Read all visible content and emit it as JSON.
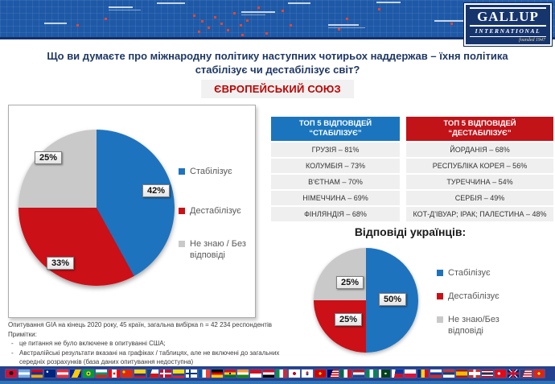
{
  "header": {
    "logo_line1": "GALLUP",
    "logo_line2": "INTERNATIONAL",
    "logo_line3": "founded 1947"
  },
  "question": {
    "line1": "Що ви думаєте про міжнародну політику наступних чотирьох наддержав – їхня політика",
    "line2": "стабілізує чи дестабілізує світ?",
    "badge": "ЄВРОПЕЙСЬКИЙ СОЮЗ"
  },
  "ukrainian_heading": "Відповіді українців:",
  "colors": {
    "stabilize_blue": "#1E73BE",
    "destabilize_red": "#CB1017",
    "no_answer_gray": "#C9C9C9",
    "accent_red": "#C00000",
    "table_header_blue": "#1B75BE",
    "table_header_red": "#C11318",
    "banner_blue": "#1E59A7",
    "flags_bar_navy": "#24408E"
  },
  "chart_data": [
    {
      "type": "pie",
      "id": "eu",
      "title": "ЄВРОПЕЙСЬКИЙ СОЮЗ",
      "labels": [
        "Стабілізує",
        "Дестабілізує",
        "Не знаю / Без відповіді"
      ],
      "values": [
        42,
        33,
        25
      ],
      "colors": [
        "#1E73BE",
        "#CB1017",
        "#C9C9C9"
      ],
      "legend_position": "right"
    },
    {
      "type": "pie",
      "id": "ukraine",
      "title": "Відповіді українців:",
      "labels": [
        "Стабілізує",
        "Дестабілізує",
        "Не знаю/Без відповіді"
      ],
      "values": [
        50,
        25,
        25
      ],
      "colors": [
        "#1E73BE",
        "#CB1017",
        "#C9C9C9"
      ],
      "legend_position": "right"
    },
    {
      "type": "table",
      "id": "top5-stabilize",
      "title_line1": "ТОП 5 ВІДПОВІДЕЙ",
      "title_line2": "“СТАБІЛІЗУЄ”",
      "header_color": "#1B75BE",
      "rows": [
        "ГРУЗІЯ – 81%",
        "КОЛУМБІЯ – 73%",
        "В'ЄТНАМ – 70%",
        "НІМЕЧЧИНА – 69%",
        "ФІНЛЯНДІЯ – 68%"
      ]
    },
    {
      "type": "table",
      "id": "top5-destabilize",
      "title_line1": "ТОП 5 ВІДПОВІДЕЙ",
      "title_line2": "“ДЕСТАБІЛІЗУЄ”",
      "header_color": "#C11318",
      "rows": [
        "ЙОРДАНІЯ – 68%",
        "РЕСПУБЛІКА КОРЕЯ – 56%",
        "ТУРЕЧЧИНА – 54%",
        "СЕРБІЯ – 49%",
        "КОТ-Д'ІВУАР; ІРАК; ПАЛЕСТИНА – 48%"
      ]
    }
  ],
  "footnotes": {
    "line1": "Опитування GIA на кінець 2020 року, 45 країн, загальна вибірка n = 42 234 респондентів",
    "line2": "Примітки:",
    "bullet_mark": "-",
    "bullet1": "це питання не було включене в опитуванні США;",
    "bullet2": "Австралійські результати вказані на графіках / таблицях, але не включені до загальних середніх розрахунків (база даних опитування недоступна)"
  },
  "flags": [
    {
      "name": "albania",
      "bg": "radial-gradient(circle at 50% 45%, #1a1a1a 0 28%, #d21034 30%)"
    },
    {
      "name": "argentina",
      "bg": "linear-gradient(180deg,#74ACDF 0 33%,#fff 33% 66%,#74ACDF 66%)"
    },
    {
      "name": "armenia",
      "bg": "linear-gradient(180deg,#D90012 0 33%,#0033A0 33% 66%,#F2A800 66%)"
    },
    {
      "name": "australia",
      "bg": "radial-gradient(circle at 28% 28%, rgba(255,255,255,.9) 0 10%, rgba(0,0,0,0) 11%), linear-gradient(#00247D,#00247D)"
    },
    {
      "name": "austria",
      "bg": "linear-gradient(180deg,#ED2939 0 33%,#fff 33% 66%,#ED2939 66%)"
    },
    {
      "name": "bosnia",
      "bg": "linear-gradient(115deg, rgba(0,0,0,0) 0 35%, #FECB00 35% 75%, rgba(0,0,0,0) 75%), linear-gradient(#002395,#002395)"
    },
    {
      "name": "brazil",
      "bg": "radial-gradient(circle at 50% 50%, #002776 0 14%, #FFDF00 15% 30%, #009C3B 32%)"
    },
    {
      "name": "bulgaria",
      "bg": "linear-gradient(180deg,#fff 0 33%,#00966E 33% 66%,#D62612 66%)"
    },
    {
      "name": "canada",
      "bg": "radial-gradient(circle at 50% 50%, #FF0000 0 15%, rgba(0,0,0,0) 16%), linear-gradient(90deg,#FF0000 0 28%,#fff 28% 72%,#FF0000 72%)"
    },
    {
      "name": "china",
      "bg": "radial-gradient(circle at 22% 30%, #FFDE00 0 12%, rgba(0,0,0,0) 13%), linear-gradient(#DE2910,#DE2910)"
    },
    {
      "name": "colombia",
      "bg": "linear-gradient(180deg,#FCD116 0 50%,#003893 50% 75%,#CE1126 75%)"
    },
    {
      "name": "czech-republic",
      "bg": "linear-gradient(110deg, #11457E 0 35%, rgba(0,0,0,0) 35%), linear-gradient(180deg,#fff 0 50%,#D7141A 50%)"
    },
    {
      "name": "denmark",
      "bg": "linear-gradient(90deg, rgba(0,0,0,0) 0 30%, #fff 30% 44%, rgba(0,0,0,0) 44%), linear-gradient(180deg, rgba(0,0,0,0) 0 38%, #fff 38% 62%, rgba(0,0,0,0) 62%), linear-gradient(#C8102E,#C8102E)"
    },
    {
      "name": "ecuador",
      "bg": "linear-gradient(180deg,#FFDD00 0 50%,#034EA2 50% 75%,#ED1C24 75%)"
    },
    {
      "name": "finland",
      "bg": "linear-gradient(90deg, rgba(0,0,0,0) 0 30%, #003580 30% 44%, rgba(0,0,0,0) 44%), linear-gradient(180deg, rgba(0,0,0,0) 0 38%, #003580 38% 62%, rgba(0,0,0,0) 62%), linear-gradient(#fff,#fff)"
    },
    {
      "name": "france",
      "bg": "linear-gradient(90deg,#0055A4 0 33%,#fff 33% 66%,#EF4135 66%)"
    },
    {
      "name": "germany",
      "bg": "linear-gradient(180deg,#000 0 33%,#DD0000 33% 66%,#FFCE00 66%)"
    },
    {
      "name": "ghana",
      "bg": "radial-gradient(circle at 50% 50%, #000 0 12%, rgba(0,0,0,0) 13%), linear-gradient(180deg,#CE1126 0 33%,#FCD116 33% 66%,#006B3F 66%)"
    },
    {
      "name": "india",
      "bg": "linear-gradient(180deg,#FF9933 0 33%,#fff 33% 66%,#138808 66%)"
    },
    {
      "name": "indonesia",
      "bg": "linear-gradient(180deg,#CE1126 0 50%,#fff 50%)"
    },
    {
      "name": "iraq",
      "bg": "linear-gradient(180deg,#CE1126 0 33%,#fff 33% 66%,#000 66%)"
    },
    {
      "name": "italy",
      "bg": "linear-gradient(90deg,#009246 0 33%,#fff 33% 66%,#CE2B37 66%)"
    },
    {
      "name": "japan",
      "bg": "radial-gradient(circle at 50% 50%, #BC002D 0 22%, #fff 24%)"
    },
    {
      "name": "south-korea",
      "bg": "radial-gradient(circle at 50% 38%, #CD2E3A 0 16%, rgba(0,0,0,0) 17%), radial-gradient(circle at 50% 58%, #0047A0 0 16%, rgba(0,0,0,0) 17%), linear-gradient(#fff,#fff)"
    },
    {
      "name": "north-macedonia",
      "bg": "radial-gradient(circle at 50% 50%, #FFE600 0 18%, rgba(0,0,0,0) 19%), linear-gradient(#D20000,#D20000)"
    },
    {
      "name": "malaysia",
      "bg": "linear-gradient(110deg, #010066 0 40%, rgba(0,0,0,0) 40%), repeating-linear-gradient(180deg, #CC0001 0 1.5px, #fff 1.5px 3px)"
    },
    {
      "name": "mexico",
      "bg": "linear-gradient(90deg,#006847 0 33%,#fff 33% 66%,#CE1126 66%)"
    },
    {
      "name": "netherlands",
      "bg": "linear-gradient(180deg,#AE1C28 0 33%,#fff 33% 66%,#21468B 66%)"
    },
    {
      "name": "nigeria",
      "bg": "linear-gradient(90deg,#008751 0 33%,#fff 33% 66%,#008751 66%)"
    },
    {
      "name": "pakistan",
      "bg": "radial-gradient(circle at 60% 50%, #fff 0 12%, rgba(0,0,0,0) 13%), linear-gradient(90deg,#fff 0 22%,#01411C 22%)"
    },
    {
      "name": "philippines",
      "bg": "linear-gradient(100deg,#fff 0 30%, rgba(0,0,0,0) 30%), linear-gradient(180deg,#0038A8 0 50%,#CE1126 50%)"
    },
    {
      "name": "poland",
      "bg": "linear-gradient(180deg,#fff 0 50%,#DC143C 50%)"
    },
    {
      "name": "romania",
      "bg": "linear-gradient(90deg,#002B7F 0 33%,#FCD116 33% 66%,#CE1126 66%)"
    },
    {
      "name": "russia",
      "bg": "linear-gradient(180deg,#fff 0 33%,#0039A6 33% 66%,#D52B1E 66%)"
    },
    {
      "name": "serbia",
      "bg": "linear-gradient(180deg,#C6363C 0 33%,#0C4076 33% 66%,#fff 66%)"
    },
    {
      "name": "spain",
      "bg": "linear-gradient(180deg,#AA151B 0 25%,#F1BF00 25% 75%,#AA151B 75%)"
    },
    {
      "name": "switzerland",
      "bg": "linear-gradient(90deg, rgba(0,0,0,0) 0 40%, #fff 40% 60%, rgba(0,0,0,0) 60%), linear-gradient(180deg, rgba(0,0,0,0) 0 32%, #fff 32% 68%, rgba(0,0,0,0) 68%), linear-gradient(#DA291C,#DA291C)"
    },
    {
      "name": "thailand",
      "bg": "linear-gradient(180deg,#A51931 0 18%,#fff 18% 36%,#2D2A4A 36% 64%,#fff 64% 82%,#A51931 82%)"
    },
    {
      "name": "turkey",
      "bg": "radial-gradient(circle at 38% 50%, #fff 0 16%, rgba(0,0,0,0) 17%), linear-gradient(#E30A17,#E30A17)"
    },
    {
      "name": "united-kingdom",
      "bg": "linear-gradient(90deg, rgba(0,0,0,0) 0 41%, #C8102E 41% 59%, rgba(0,0,0,0) 59%), linear-gradient(180deg, rgba(0,0,0,0) 0 36%, #C8102E 36% 64%, rgba(0,0,0,0) 64%), linear-gradient(45deg, rgba(0,0,0,0) 0 46%, #fff 46% 54%, rgba(0,0,0,0) 54%), linear-gradient(135deg, rgba(0,0,0,0) 0 46%, #fff 46% 54%, rgba(0,0,0,0) 54%), linear-gradient(#012169,#012169)"
    },
    {
      "name": "united-states",
      "bg": "linear-gradient(110deg, #3C3B6E 0 35%, rgba(0,0,0,0) 35%), repeating-linear-gradient(180deg, #B22234 0 1.5px, #fff 1.5px 3px)"
    },
    {
      "name": "vietnam",
      "bg": "radial-gradient(circle at 50% 50%, #FFFF00 0 18%, rgba(0,0,0,0) 19%), linear-gradient(#DA251D,#DA251D)"
    }
  ]
}
